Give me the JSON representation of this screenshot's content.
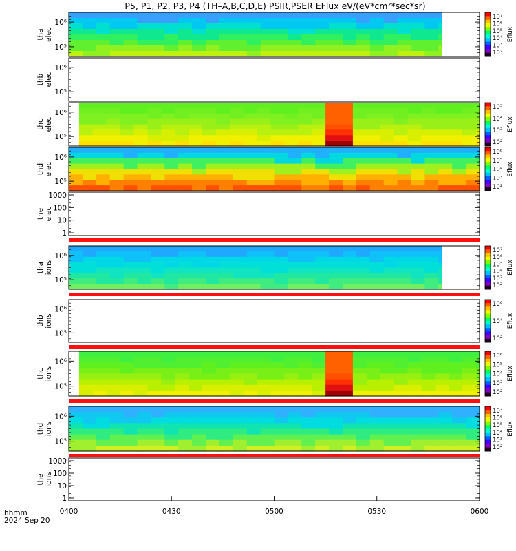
{
  "title": "P5, P1, P2, P3, P4 (TH–A,B,C,D,E) PSIR,PSER EFlux eV/(eV*cm²*sec*sr)",
  "footer": {
    "time_label": "hhmm",
    "date_label": "2024 Sep 20"
  },
  "colorbar_label": "Eflux",
  "chart_data": {
    "type": "heatmap",
    "x_ticks": [
      "0400",
      "0430",
      "0500",
      "0530",
      "0600"
    ],
    "x_range_minutes": [
      0,
      120
    ],
    "panels": [
      {
        "label": [
          "tha",
          "elec"
        ],
        "kind": "spec",
        "y_ticks": [
          "10⁶",
          "10⁵"
        ],
        "cbar_ticks": [
          "10⁷",
          "10⁶",
          "10⁵",
          "10⁴",
          "10³",
          "10²"
        ],
        "data_start": 0,
        "data_end": 109,
        "palette": "a_elec"
      },
      {
        "label": [
          "thb",
          "elec"
        ],
        "kind": "empty",
        "y_ticks": [
          "10⁶",
          "10⁵"
        ],
        "cbar_ticks": []
      },
      {
        "label": [
          "thc",
          "elec"
        ],
        "kind": "spec",
        "y_ticks": [
          "10⁶",
          "10⁵"
        ],
        "cbar_ticks": [
          "10⁵",
          "10⁴",
          "10³",
          "10²"
        ],
        "data_start": 3,
        "data_end": 120,
        "palette": "c",
        "burst": [
          73,
          82
        ]
      },
      {
        "label": [
          "thd",
          "elec"
        ],
        "kind": "spec",
        "y_ticks": [
          "10⁶",
          "10⁵"
        ],
        "cbar_ticks": [
          "10⁶",
          "10⁵",
          "10⁴",
          "10³",
          "10²"
        ],
        "data_start": 0,
        "data_end": 120,
        "palette": "d_elec"
      },
      {
        "label": [
          "the",
          "elec"
        ],
        "kind": "line",
        "y_ticks": [
          "1000",
          "100",
          "10",
          "1"
        ],
        "cbar_ticks": []
      },
      {
        "label": [
          "tha",
          "ions"
        ],
        "kind": "spec",
        "y_ticks": [
          "10⁶",
          "10⁵"
        ],
        "cbar_ticks": [
          "10⁷",
          "10⁶",
          "10⁵",
          "10⁴",
          "10³",
          "10²"
        ],
        "data_start": 0,
        "data_end": 109,
        "palette": "a_ions"
      },
      {
        "label": [
          "thb",
          "ions"
        ],
        "kind": "empty",
        "y_ticks": [
          "10⁶",
          "10⁵"
        ],
        "cbar_ticks": [
          "10⁶",
          "10⁴",
          "10²"
        ]
      },
      {
        "label": [
          "thc",
          "ions"
        ],
        "kind": "spec",
        "y_ticks": [
          "10⁶",
          "10⁵"
        ],
        "cbar_ticks": [
          "10⁶",
          "10⁵",
          "10⁴",
          "10³",
          "10²"
        ],
        "data_start": 3,
        "data_end": 120,
        "palette": "c_ions",
        "burst": [
          73,
          82
        ]
      },
      {
        "label": [
          "thd",
          "ions"
        ],
        "kind": "spec",
        "y_ticks": [
          "10⁶",
          "10⁵"
        ],
        "cbar_ticks": [
          "10⁷",
          "10⁶",
          "10⁵",
          "10⁴",
          "10³",
          "10²"
        ],
        "data_start": 0,
        "data_end": 120,
        "palette": "d_ions"
      },
      {
        "label": [
          "the",
          "ions"
        ],
        "kind": "line",
        "y_ticks": [
          "1000",
          "100",
          "10",
          "1"
        ],
        "cbar_ticks": []
      }
    ]
  }
}
